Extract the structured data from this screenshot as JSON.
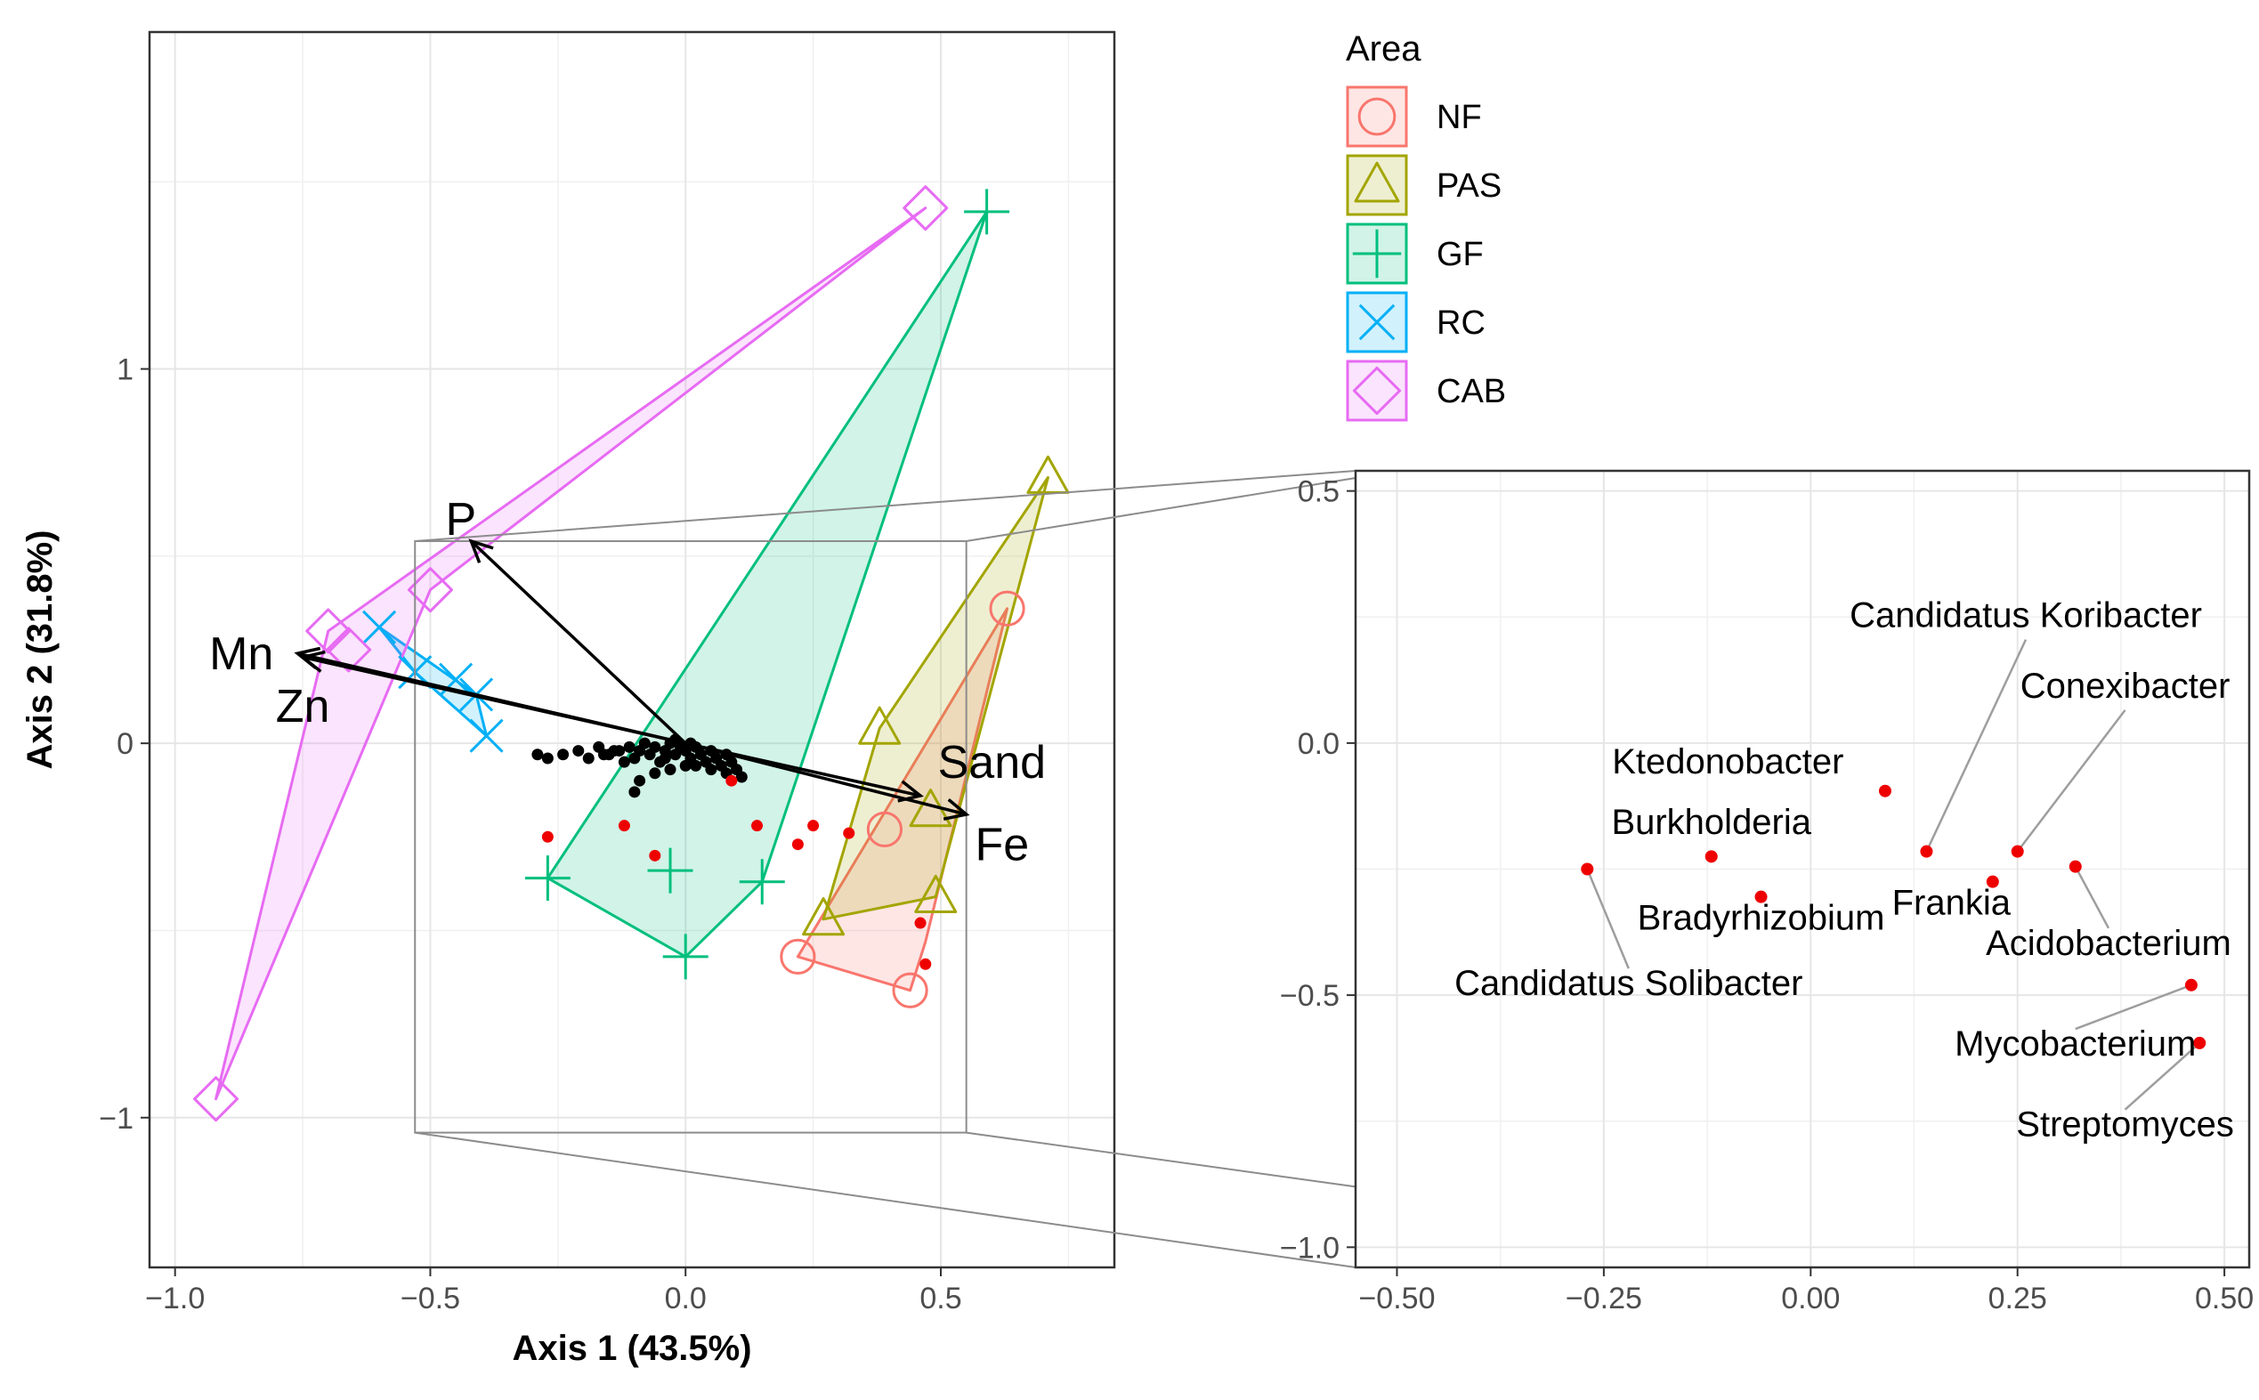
{
  "chart_data": [
    {
      "type": "scatter",
      "subtype": "ordination biplot with convex hulls and vectors",
      "xlabel": "Axis 1 (43.5%)",
      "ylabel": "Axis 2 (31.8%)",
      "xlim": [
        -1.05,
        0.84
      ],
      "ylim": [
        -1.4,
        1.9
      ],
      "x_ticks": [
        {
          "value": -1.0,
          "label": "−1.0"
        },
        {
          "value": -0.5,
          "label": "−0.5"
        },
        {
          "value": 0.0,
          "label": "0.0"
        },
        {
          "value": 0.5,
          "label": "0.5"
        }
      ],
      "y_ticks": [
        {
          "value": -1,
          "label": "−1"
        },
        {
          "value": 0,
          "label": "0"
        },
        {
          "value": 1,
          "label": "1"
        }
      ],
      "grid": true,
      "legend": {
        "title": "Area",
        "position": "top-right",
        "entries": [
          {
            "label": "NF",
            "color": "#F8766D",
            "shape": "circle"
          },
          {
            "label": "PAS",
            "color": "#A3A500",
            "shape": "triangle"
          },
          {
            "label": "GF",
            "color": "#00BF7D",
            "shape": "plus"
          },
          {
            "label": "RC",
            "color": "#00B0F6",
            "shape": "cross"
          },
          {
            "label": "CAB",
            "color": "#E76BF3",
            "shape": "diamond"
          }
        ]
      },
      "series": [
        {
          "name": "NF",
          "color": "#F8766D",
          "shape": "circle",
          "points": [
            [
              0.63,
              0.36
            ],
            [
              0.39,
              -0.23
            ],
            [
              0.22,
              -0.57
            ],
            [
              0.44,
              -0.66
            ]
          ],
          "hull": [
            [
              0.63,
              0.36
            ],
            [
              0.22,
              -0.57
            ],
            [
              0.44,
              -0.66
            ],
            [
              0.47,
              -0.53
            ]
          ]
        },
        {
          "name": "PAS",
          "color": "#A3A500",
          "shape": "triangle",
          "points": [
            [
              0.71,
              0.71
            ],
            [
              0.38,
              0.04
            ],
            [
              0.48,
              -0.18
            ],
            [
              0.49,
              -0.41
            ],
            [
              0.27,
              -0.47
            ]
          ],
          "hull": [
            [
              0.71,
              0.71
            ],
            [
              0.38,
              0.04
            ],
            [
              0.27,
              -0.47
            ],
            [
              0.49,
              -0.41
            ]
          ]
        },
        {
          "name": "GF",
          "color": "#00BF7D",
          "shape": "plus",
          "points": [
            [
              0.59,
              1.42
            ],
            [
              -0.27,
              -0.36
            ],
            [
              -0.03,
              -0.34
            ],
            [
              0.15,
              -0.37
            ],
            [
              0.0,
              -0.57
            ]
          ],
          "hull": [
            [
              0.59,
              1.42
            ],
            [
              -0.27,
              -0.36
            ],
            [
              0.0,
              -0.57
            ],
            [
              0.15,
              -0.37
            ]
          ]
        },
        {
          "name": "RC",
          "color": "#00B0F6",
          "shape": "cross",
          "points": [
            [
              -0.6,
              0.31
            ],
            [
              -0.53,
              0.19
            ],
            [
              -0.45,
              0.17
            ],
            [
              -0.41,
              0.13
            ],
            [
              -0.39,
              0.02
            ]
          ],
          "hull": [
            [
              -0.6,
              0.31
            ],
            [
              -0.53,
              0.19
            ],
            [
              -0.39,
              0.02
            ],
            [
              -0.41,
              0.13
            ]
          ]
        },
        {
          "name": "CAB",
          "color": "#E76BF3",
          "shape": "diamond",
          "points": [
            [
              0.47,
              1.43
            ],
            [
              -0.5,
              0.41
            ],
            [
              -0.7,
              0.3
            ],
            [
              -0.66,
              0.25
            ],
            [
              -0.92,
              -0.95
            ]
          ],
          "hull": [
            [
              0.47,
              1.43
            ],
            [
              -0.7,
              0.3
            ],
            [
              -0.92,
              -0.95
            ],
            [
              -0.5,
              0.41
            ]
          ]
        }
      ],
      "vectors": [
        {
          "label": "P",
          "x": -0.42,
          "y": 0.54
        },
        {
          "label": "Mn",
          "x": -0.76,
          "y": 0.24
        },
        {
          "label": "Zn",
          "x": -0.75,
          "y": 0.23
        },
        {
          "label": "Sand",
          "x": 0.46,
          "y": -0.14
        },
        {
          "label": "Fe",
          "x": 0.55,
          "y": -0.19
        }
      ],
      "vector_label_positions": [
        {
          "label": "P",
          "x": -0.44,
          "y": 0.6
        },
        {
          "label": "Mn",
          "x": -0.87,
          "y": 0.24
        },
        {
          "label": "Zn",
          "x": -0.75,
          "y": 0.1
        },
        {
          "label": "Sand",
          "x": 0.6,
          "y": -0.05
        },
        {
          "label": "Fe",
          "x": 0.62,
          "y": -0.27
        }
      ],
      "black_points": [
        [
          -0.29,
          -0.03
        ],
        [
          -0.27,
          -0.04
        ],
        [
          -0.24,
          -0.03
        ],
        [
          -0.21,
          -0.02
        ],
        [
          -0.19,
          -0.04
        ],
        [
          -0.17,
          -0.01
        ],
        [
          -0.15,
          -0.03
        ],
        [
          -0.13,
          -0.02
        ],
        [
          -0.11,
          -0.01
        ],
        [
          -0.1,
          -0.04
        ],
        [
          -0.09,
          -0.02
        ],
        [
          -0.08,
          0.0
        ],
        [
          -0.07,
          -0.03
        ],
        [
          -0.06,
          -0.01
        ],
        [
          -0.05,
          -0.05
        ],
        [
          -0.04,
          -0.02
        ],
        [
          -0.03,
          0.0
        ],
        [
          -0.02,
          -0.03
        ],
        [
          -0.01,
          -0.01
        ],
        [
          0.0,
          -0.02
        ],
        [
          0.01,
          -0.04
        ],
        [
          0.02,
          -0.01
        ],
        [
          0.03,
          -0.03
        ],
        [
          0.04,
          -0.05
        ],
        [
          0.05,
          -0.02
        ],
        [
          0.06,
          -0.04
        ],
        [
          0.07,
          -0.06
        ],
        [
          0.08,
          -0.03
        ],
        [
          0.09,
          -0.05
        ],
        [
          0.1,
          -0.07
        ],
        [
          0.11,
          -0.09
        ],
        [
          -0.03,
          -0.07
        ],
        [
          -0.06,
          -0.08
        ],
        [
          -0.09,
          -0.1
        ],
        [
          -0.1,
          -0.13
        ],
        [
          0.0,
          -0.06
        ],
        [
          -0.04,
          -0.04
        ],
        [
          0.02,
          -0.06
        ],
        [
          0.05,
          -0.07
        ],
        [
          0.08,
          -0.08
        ],
        [
          -0.02,
          0.01
        ],
        [
          0.01,
          0.0
        ],
        [
          -0.12,
          -0.05
        ],
        [
          -0.14,
          -0.02
        ],
        [
          -0.16,
          -0.03
        ]
      ],
      "red_points": [
        [
          -0.27,
          -0.25
        ],
        [
          -0.12,
          -0.22
        ],
        [
          -0.06,
          -0.3
        ],
        [
          0.09,
          -0.1
        ],
        [
          0.14,
          -0.22
        ],
        [
          0.22,
          -0.27
        ],
        [
          0.25,
          -0.22
        ],
        [
          0.32,
          -0.24
        ],
        [
          0.46,
          -0.48
        ],
        [
          0.47,
          -0.59
        ]
      ],
      "zoom_box": {
        "x0": -0.53,
        "x1": 0.55,
        "y0": -1.04,
        "y1": 0.54
      }
    },
    {
      "type": "scatter",
      "subtype": "zoomed inset of genus loadings",
      "xlim": [
        -0.55,
        0.53
      ],
      "ylim": [
        -1.04,
        0.54
      ],
      "x_ticks": [
        {
          "value": -0.5,
          "label": "−0.50"
        },
        {
          "value": -0.25,
          "label": "−0.25"
        },
        {
          "value": 0.0,
          "label": "0.00"
        },
        {
          "value": 0.25,
          "label": "0.25"
        },
        {
          "value": 0.5,
          "label": "0.50"
        }
      ],
      "y_ticks": [
        {
          "value": 0.5,
          "label": "0.5"
        },
        {
          "value": 0.0,
          "label": "0.0"
        },
        {
          "value": -0.5,
          "label": "−0.5"
        },
        {
          "value": -1.0,
          "label": "−1.0"
        }
      ],
      "grid": true,
      "points": [
        {
          "label": "Candidatus Solibacter",
          "x": -0.27,
          "y": -0.25,
          "label_x": -0.22,
          "label_y": -0.5,
          "leader": true
        },
        {
          "label": "Burkholderia",
          "x": -0.12,
          "y": -0.225,
          "label_x": -0.12,
          "label_y": -0.18,
          "leader": false
        },
        {
          "label": "Bradyrhizobium",
          "x": -0.06,
          "y": -0.305,
          "label_x": -0.06,
          "label_y": -0.37,
          "leader": false
        },
        {
          "label": "Ktedonobacter",
          "x": 0.09,
          "y": -0.095,
          "label_x": -0.1,
          "label_y": -0.06,
          "leader": false
        },
        {
          "label": "Candidatus Koribacter",
          "x": 0.14,
          "y": -0.215,
          "label_x": 0.26,
          "label_y": 0.23,
          "leader": true
        },
        {
          "label": "Conexibacter",
          "x": 0.25,
          "y": -0.215,
          "label_x": 0.38,
          "label_y": 0.09,
          "leader": true
        },
        {
          "label": "Frankia",
          "x": 0.22,
          "y": -0.275,
          "label_x": 0.17,
          "label_y": -0.34,
          "leader": false
        },
        {
          "label": "Acidobacterium",
          "x": 0.32,
          "y": -0.245,
          "label_x": 0.36,
          "label_y": -0.42,
          "leader": true
        },
        {
          "label": "Mycobacterium",
          "x": 0.46,
          "y": -0.48,
          "label_x": 0.32,
          "label_y": -0.62,
          "leader": true
        },
        {
          "label": "Streptomyces",
          "x": 0.47,
          "y": -0.595,
          "label_x": 0.38,
          "label_y": -0.78,
          "leader": true
        }
      ]
    }
  ]
}
